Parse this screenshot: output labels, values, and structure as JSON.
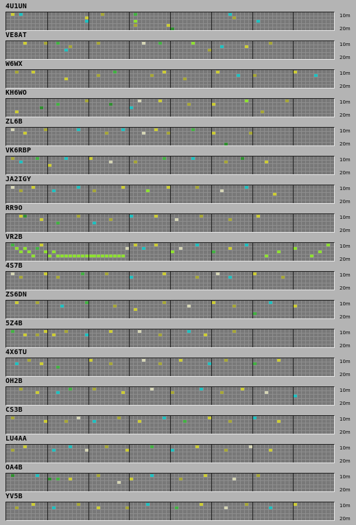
{
  "band_labels": {
    "top": "10m",
    "bottom": "20m"
  },
  "grid": {
    "minutes": 60,
    "bands": 5,
    "hour_groups": 6
  },
  "colors": {
    "grid_bg": "#787878",
    "grid_line": "#8e8e8e",
    "hour_line": "#202020",
    "signal_levels": [
      "#2f8f2f",
      "#42b142",
      "#a6a636",
      "#cccc34",
      "#1ec0c0",
      "#d4d4b4",
      "#8ee030"
    ]
  },
  "beacons": [
    {
      "callsign": "4U1UN",
      "cells": [
        [
          1,
          0,
          3
        ],
        [
          3,
          0,
          4
        ],
        [
          23,
          0,
          2
        ],
        [
          31,
          0,
          1
        ],
        [
          19,
          1,
          3
        ],
        [
          19,
          2,
          4
        ],
        [
          31,
          2,
          6
        ],
        [
          31,
          3,
          2
        ],
        [
          39,
          3,
          3
        ],
        [
          40,
          4,
          0
        ],
        [
          54,
          0,
          4
        ],
        [
          55,
          1,
          2
        ],
        [
          61,
          2,
          4
        ]
      ]
    },
    {
      "callsign": "VE8AT",
      "cells": [
        [
          4,
          0,
          3
        ],
        [
          9,
          0,
          2
        ],
        [
          12,
          0,
          1
        ],
        [
          15,
          1,
          2
        ],
        [
          14,
          2,
          4
        ],
        [
          22,
          0,
          2
        ],
        [
          33,
          0,
          5
        ],
        [
          37,
          0,
          1
        ],
        [
          45,
          0,
          6
        ],
        [
          52,
          1,
          4
        ],
        [
          49,
          2,
          2
        ],
        [
          58,
          1,
          3
        ],
        [
          64,
          0,
          2
        ]
      ]
    },
    {
      "callsign": "W6WX",
      "cells": [
        [
          2,
          0,
          2
        ],
        [
          6,
          0,
          3
        ],
        [
          14,
          2,
          3
        ],
        [
          22,
          1,
          2
        ],
        [
          26,
          0,
          1
        ],
        [
          35,
          1,
          2
        ],
        [
          38,
          0,
          3
        ],
        [
          43,
          2,
          2
        ],
        [
          51,
          0,
          3
        ],
        [
          56,
          1,
          4
        ],
        [
          60,
          1,
          2
        ],
        [
          70,
          0,
          3
        ],
        [
          75,
          1,
          4
        ]
      ]
    },
    {
      "callsign": "KH6WO",
      "cells": [
        [
          2,
          3,
          3
        ],
        [
          8,
          2,
          0
        ],
        [
          12,
          1,
          1
        ],
        [
          19,
          0,
          2
        ],
        [
          25,
          1,
          0
        ],
        [
          30,
          2,
          4
        ],
        [
          32,
          0,
          5
        ],
        [
          37,
          0,
          3
        ],
        [
          44,
          1,
          2
        ],
        [
          50,
          1,
          3
        ],
        [
          58,
          0,
          6
        ],
        [
          62,
          3,
          2
        ],
        [
          68,
          0,
          2
        ]
      ]
    },
    {
      "callsign": "ZL6B",
      "cells": [
        [
          1,
          0,
          5
        ],
        [
          4,
          1,
          3
        ],
        [
          9,
          0,
          2
        ],
        [
          17,
          0,
          4
        ],
        [
          24,
          1,
          2
        ],
        [
          28,
          0,
          4
        ],
        [
          33,
          1,
          5
        ],
        [
          36,
          0,
          3
        ],
        [
          39,
          1,
          2
        ],
        [
          45,
          0,
          1
        ],
        [
          50,
          1,
          3
        ],
        [
          53,
          4,
          0
        ],
        [
          59,
          1,
          2
        ]
      ]
    },
    {
      "callsign": "VK6RBP",
      "cells": [
        [
          1,
          0,
          2
        ],
        [
          3,
          1,
          4
        ],
        [
          7,
          0,
          1
        ],
        [
          10,
          2,
          3
        ],
        [
          14,
          0,
          4
        ],
        [
          20,
          0,
          3
        ],
        [
          25,
          1,
          5
        ],
        [
          31,
          1,
          2
        ],
        [
          38,
          0,
          1
        ],
        [
          45,
          0,
          4
        ],
        [
          53,
          1,
          2
        ],
        [
          57,
          0,
          0
        ],
        [
          63,
          1,
          3
        ]
      ]
    },
    {
      "callsign": "JA2IGY",
      "cells": [
        [
          1,
          0,
          5
        ],
        [
          3,
          1,
          2
        ],
        [
          6,
          0,
          3
        ],
        [
          11,
          1,
          4
        ],
        [
          17,
          0,
          4
        ],
        [
          21,
          1,
          2
        ],
        [
          28,
          0,
          3
        ],
        [
          34,
          1,
          6
        ],
        [
          39,
          0,
          3
        ],
        [
          46,
          0,
          2
        ],
        [
          52,
          1,
          5
        ],
        [
          58,
          0,
          4
        ],
        [
          65,
          2,
          3
        ]
      ]
    },
    {
      "callsign": "RR9O",
      "cells": [
        [
          3,
          0,
          3
        ],
        [
          4,
          0,
          0
        ],
        [
          8,
          1,
          3
        ],
        [
          12,
          2,
          1
        ],
        [
          17,
          0,
          2
        ],
        [
          21,
          2,
          4
        ],
        [
          25,
          1,
          2
        ],
        [
          30,
          0,
          4
        ],
        [
          36,
          0,
          3
        ],
        [
          41,
          1,
          5
        ],
        [
          47,
          0,
          2
        ],
        [
          54,
          1,
          2
        ],
        [
          61,
          0,
          3
        ]
      ]
    },
    {
      "callsign": "VR2B",
      "cells": [
        [
          1,
          0,
          1
        ],
        [
          2,
          1,
          6
        ],
        [
          3,
          2,
          6
        ],
        [
          4,
          1,
          6
        ],
        [
          5,
          2,
          6
        ],
        [
          6,
          3,
          6
        ],
        [
          7,
          1,
          1
        ],
        [
          8,
          0,
          3
        ],
        [
          9,
          2,
          6
        ],
        [
          10,
          3,
          6
        ],
        [
          11,
          2,
          6
        ],
        [
          12,
          3,
          6
        ],
        [
          13,
          3,
          6
        ],
        [
          14,
          3,
          6
        ],
        [
          15,
          3,
          6
        ],
        [
          16,
          3,
          6
        ],
        [
          17,
          3,
          6
        ],
        [
          18,
          3,
          6
        ],
        [
          19,
          3,
          6
        ],
        [
          20,
          3,
          6
        ],
        [
          21,
          3,
          6
        ],
        [
          22,
          3,
          6
        ],
        [
          23,
          3,
          6
        ],
        [
          24,
          3,
          6
        ],
        [
          25,
          3,
          6
        ],
        [
          26,
          3,
          6
        ],
        [
          27,
          3,
          6
        ],
        [
          28,
          3,
          6
        ],
        [
          29,
          1,
          5
        ],
        [
          31,
          0,
          3
        ],
        [
          33,
          1,
          4
        ],
        [
          36,
          0,
          3
        ],
        [
          40,
          2,
          6
        ],
        [
          42,
          1,
          5
        ],
        [
          46,
          0,
          4
        ],
        [
          50,
          2,
          1
        ],
        [
          54,
          1,
          3
        ],
        [
          58,
          0,
          4
        ],
        [
          63,
          3,
          6
        ],
        [
          66,
          2,
          6
        ],
        [
          70,
          1,
          6
        ],
        [
          74,
          3,
          6
        ],
        [
          76,
          2,
          6
        ],
        [
          78,
          0,
          6
        ]
      ]
    },
    {
      "callsign": "4S7B",
      "cells": [
        [
          1,
          0,
          5
        ],
        [
          3,
          1,
          2
        ],
        [
          9,
          0,
          3
        ],
        [
          12,
          1,
          2
        ],
        [
          18,
          0,
          1
        ],
        [
          24,
          0,
          2
        ],
        [
          30,
          1,
          4
        ],
        [
          38,
          0,
          3
        ],
        [
          46,
          1,
          2
        ],
        [
          51,
          0,
          5
        ],
        [
          54,
          1,
          4
        ],
        [
          60,
          0,
          3
        ],
        [
          67,
          1,
          2
        ]
      ]
    },
    {
      "callsign": "ZS6DN",
      "cells": [
        [
          2,
          0,
          3
        ],
        [
          7,
          0,
          2
        ],
        [
          13,
          1,
          4
        ],
        [
          19,
          0,
          1
        ],
        [
          26,
          1,
          2
        ],
        [
          31,
          2,
          3
        ],
        [
          38,
          0,
          2
        ],
        [
          44,
          1,
          5
        ],
        [
          50,
          0,
          3
        ],
        [
          55,
          1,
          2
        ],
        [
          60,
          3,
          1
        ],
        [
          64,
          0,
          4
        ],
        [
          70,
          1,
          3
        ]
      ]
    },
    {
      "callsign": "5Z4B",
      "cells": [
        [
          1,
          0,
          1
        ],
        [
          4,
          1,
          3
        ],
        [
          7,
          1,
          2
        ],
        [
          9,
          0,
          3
        ],
        [
          11,
          1,
          3
        ],
        [
          14,
          0,
          2
        ],
        [
          19,
          1,
          4
        ],
        [
          25,
          0,
          3
        ],
        [
          32,
          0,
          5
        ],
        [
          37,
          1,
          2
        ],
        [
          44,
          0,
          4
        ],
        [
          48,
          1,
          3
        ],
        [
          55,
          0,
          2
        ]
      ]
    },
    {
      "callsign": "4X6TU",
      "cells": [
        [
          2,
          1,
          4
        ],
        [
          5,
          0,
          2
        ],
        [
          8,
          1,
          3
        ],
        [
          12,
          2,
          1
        ],
        [
          20,
          0,
          3
        ],
        [
          25,
          1,
          2
        ],
        [
          33,
          0,
          5
        ],
        [
          37,
          1,
          2
        ],
        [
          42,
          0,
          3
        ],
        [
          49,
          1,
          4
        ],
        [
          53,
          0,
          2
        ],
        [
          60,
          1,
          1
        ],
        [
          66,
          0,
          3
        ]
      ]
    },
    {
      "callsign": "OH2B",
      "cells": [
        [
          3,
          0,
          2
        ],
        [
          7,
          1,
          3
        ],
        [
          12,
          1,
          4
        ],
        [
          15,
          0,
          1
        ],
        [
          21,
          0,
          2
        ],
        [
          28,
          1,
          3
        ],
        [
          35,
          0,
          5
        ],
        [
          40,
          1,
          2
        ],
        [
          47,
          0,
          4
        ],
        [
          52,
          1,
          2
        ],
        [
          57,
          0,
          3
        ],
        [
          63,
          1,
          5
        ],
        [
          70,
          2,
          4
        ]
      ]
    },
    {
      "callsign": "CS3B",
      "cells": [
        [
          1,
          0,
          2
        ],
        [
          9,
          1,
          3
        ],
        [
          14,
          1,
          2
        ],
        [
          17,
          0,
          5
        ],
        [
          21,
          1,
          4
        ],
        [
          27,
          0,
          2
        ],
        [
          32,
          1,
          3
        ],
        [
          38,
          0,
          4
        ],
        [
          43,
          1,
          1
        ],
        [
          49,
          0,
          3
        ],
        [
          54,
          1,
          2
        ],
        [
          60,
          0,
          4
        ],
        [
          66,
          1,
          3
        ]
      ]
    },
    {
      "callsign": "LU4AA",
      "cells": [
        [
          1,
          1,
          2
        ],
        [
          4,
          0,
          3
        ],
        [
          11,
          1,
          4
        ],
        [
          15,
          0,
          4
        ],
        [
          19,
          1,
          5
        ],
        [
          24,
          0,
          2
        ],
        [
          29,
          1,
          3
        ],
        [
          35,
          0,
          1
        ],
        [
          40,
          1,
          4
        ],
        [
          46,
          0,
          3
        ],
        [
          53,
          1,
          2
        ],
        [
          59,
          0,
          5
        ],
        [
          64,
          1,
          3
        ]
      ]
    },
    {
      "callsign": "OA4B",
      "cells": [
        [
          1,
          0,
          0
        ],
        [
          7,
          0,
          4
        ],
        [
          10,
          1,
          0
        ],
        [
          12,
          1,
          1
        ],
        [
          15,
          1,
          3
        ],
        [
          22,
          0,
          2
        ],
        [
          27,
          2,
          5
        ],
        [
          30,
          1,
          3
        ],
        [
          35,
          0,
          4
        ],
        [
          42,
          1,
          2
        ],
        [
          48,
          0,
          3
        ],
        [
          55,
          1,
          5
        ],
        [
          61,
          0,
          2
        ]
      ]
    },
    {
      "callsign": "YV5B",
      "cells": [
        [
          2,
          1,
          2
        ],
        [
          6,
          0,
          3
        ],
        [
          11,
          1,
          4
        ],
        [
          17,
          0,
          2
        ],
        [
          22,
          1,
          3
        ],
        [
          29,
          1,
          2
        ],
        [
          34,
          0,
          4
        ],
        [
          41,
          1,
          1
        ],
        [
          47,
          0,
          3
        ],
        [
          53,
          1,
          5
        ],
        [
          58,
          0,
          2
        ],
        [
          64,
          1,
          4
        ],
        [
          70,
          0,
          3
        ]
      ]
    }
  ]
}
